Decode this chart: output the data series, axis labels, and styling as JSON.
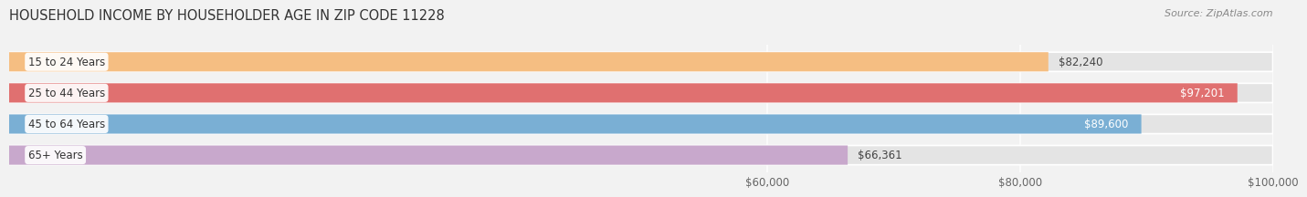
{
  "title": "HOUSEHOLD INCOME BY HOUSEHOLDER AGE IN ZIP CODE 11228",
  "source": "Source: ZipAtlas.com",
  "categories": [
    "15 to 24 Years",
    "25 to 44 Years",
    "45 to 64 Years",
    "65+ Years"
  ],
  "values": [
    82240,
    97201,
    89600,
    66361
  ],
  "bar_colors": [
    "#F5BE82",
    "#E07070",
    "#7AAFD4",
    "#C8A8CC"
  ],
  "value_labels": [
    "$82,240",
    "$97,201",
    "$89,600",
    "$66,361"
  ],
  "value_label_inside": [
    false,
    true,
    true,
    false
  ],
  "x_min": 0,
  "x_max": 100000,
  "x_ticks": [
    60000,
    80000,
    100000
  ],
  "x_tick_labels": [
    "$60,000",
    "$80,000",
    "$100,000"
  ],
  "background_color": "#f2f2f2",
  "bar_bg_color": "#e4e4e4",
  "title_fontsize": 10.5,
  "source_fontsize": 8,
  "cat_fontsize": 8.5,
  "val_fontsize": 8.5,
  "tick_fontsize": 8.5
}
